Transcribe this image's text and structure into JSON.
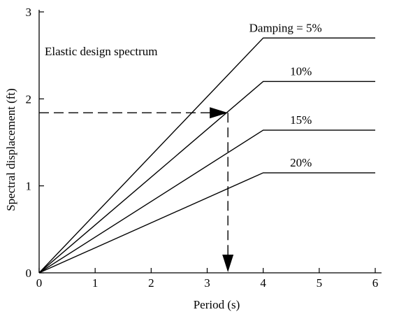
{
  "chart_data": {
    "type": "line",
    "title": "",
    "annotation": "Elastic design spectrum",
    "xlabel": "Period (s)",
    "ylabel": "Spectral displacement (ft)",
    "xlim": [
      0,
      6
    ],
    "ylim": [
      0,
      3
    ],
    "xticks": [
      "0",
      "1",
      "2",
      "3",
      "4",
      "5",
      "6"
    ],
    "yticks": [
      "0",
      "1",
      "2",
      "3"
    ],
    "grid": false,
    "series": [
      {
        "name": "Damping = 5%",
        "x": [
          0,
          4,
          6
        ],
        "y": [
          0,
          2.7,
          2.7
        ]
      },
      {
        "name": "10%",
        "x": [
          0,
          4,
          6
        ],
        "y": [
          0,
          2.2,
          2.2
        ]
      },
      {
        "name": "15%",
        "x": [
          0,
          4,
          6
        ],
        "y": [
          0,
          1.64,
          1.64
        ]
      },
      {
        "name": "20%",
        "x": [
          0,
          4,
          6
        ],
        "y": [
          0,
          1.15,
          1.15
        ]
      }
    ],
    "reading": {
      "x": 3.37,
      "y": 1.84
    }
  }
}
